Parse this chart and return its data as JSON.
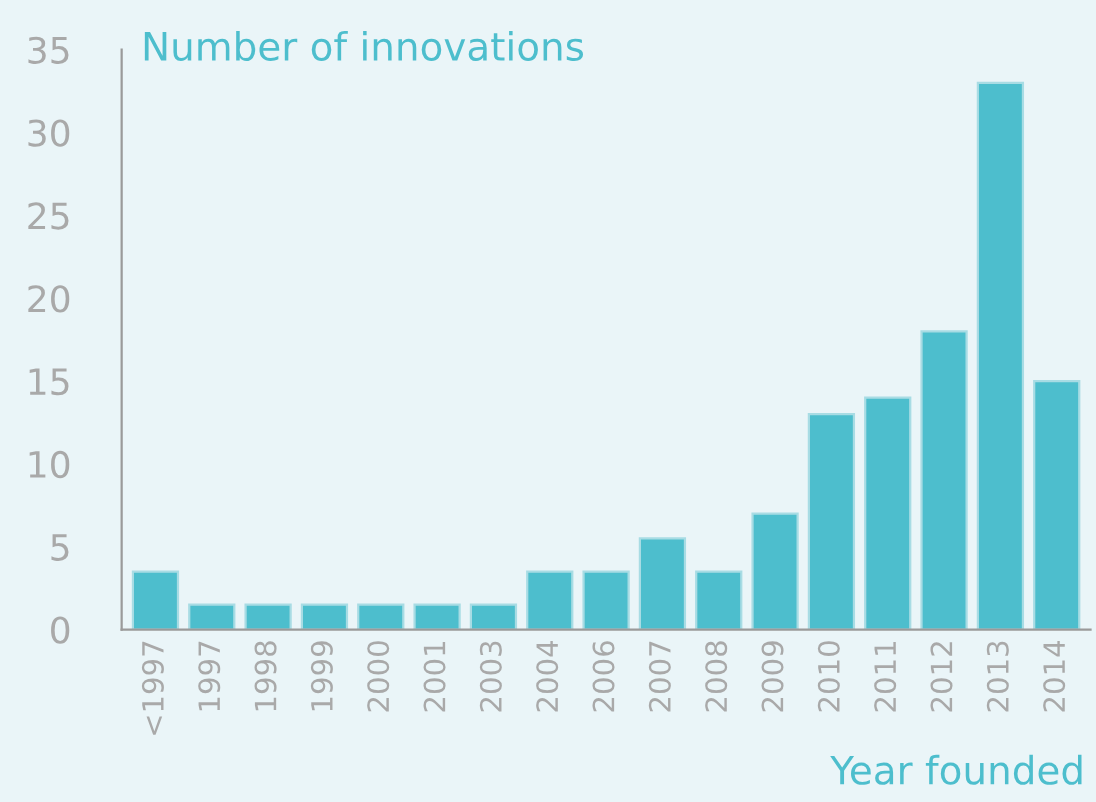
{
  "chart_data": {
    "type": "bar",
    "ylabel": "Number of innovations",
    "xlabel": "Year founded",
    "categories": [
      "<1997",
      "1997",
      "1998",
      "1999",
      "2000",
      "2001",
      "2003",
      "2004",
      "2006",
      "2007",
      "2008",
      "2009",
      "2010",
      "2011",
      "2012",
      "2013",
      "2014"
    ],
    "values": [
      3.5,
      1.5,
      1.5,
      1.5,
      1.5,
      1.5,
      1.5,
      3.5,
      3.5,
      5.5,
      3.5,
      7,
      13,
      14,
      18,
      33,
      15
    ],
    "color": "#4dbecd",
    "ylim": [
      0,
      35
    ],
    "yticks": [
      0,
      5,
      10,
      15,
      20,
      25,
      30,
      35
    ],
    "grid": false
  }
}
